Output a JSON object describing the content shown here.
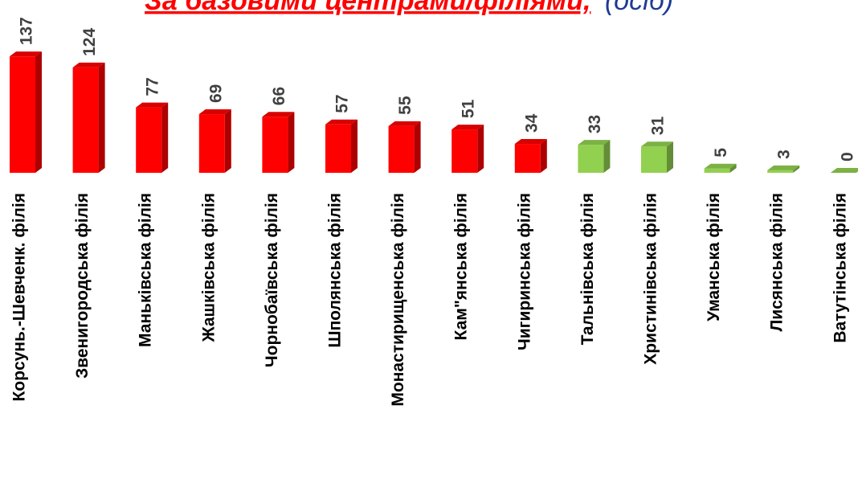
{
  "chart_data": {
    "type": "bar3d",
    "title": "За  базовими центрами/філіями,",
    "title_note": "(осіб)",
    "categories": [
      "Корсунь.-Шевченк. філія",
      "Звенигородська філія",
      "Маньківська філія",
      "Жашківська філія",
      "Чорнобаївська філія",
      "Шполянська філія",
      "Монастирищенська філія",
      "Кам\"янська філія",
      "Чигиринська філія",
      "Тальнівська філія",
      "Христинівська філія",
      "Уманська філія",
      "Лисянська філія",
      "Ватутінська філія"
    ],
    "values": [
      137,
      124,
      77,
      69,
      66,
      57,
      55,
      51,
      34,
      33,
      31,
      5,
      3,
      0
    ],
    "colors": [
      "#ff0000",
      "#ff0000",
      "#ff0000",
      "#ff0000",
      "#ff0000",
      "#ff0000",
      "#ff0000",
      "#ff0000",
      "#ff0000",
      "#92d050",
      "#92d050",
      "#92d050",
      "#92d050",
      "#92d050"
    ],
    "ylim": [
      0,
      140
    ]
  }
}
